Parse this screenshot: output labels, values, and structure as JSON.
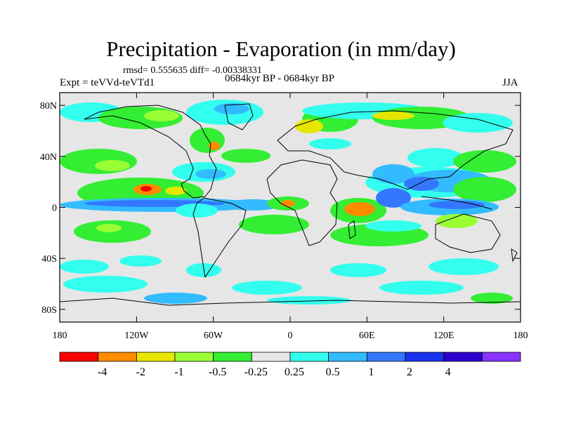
{
  "title": "Precipitation - Evaporation (in mm/day)",
  "stats": "rmsd= 0.555635 diff= -0.00338331",
  "experiment": "Expt = teVVd-teVTd1",
  "period": "0684kyr BP - 0684kyr BP",
  "season": "JJA",
  "map": {
    "projection": "cylindrical equidistant",
    "lon_range": [
      -180,
      180
    ],
    "lat_range": [
      -90,
      90
    ],
    "lat_ticks": [
      {
        "value": 80,
        "label": "80N"
      },
      {
        "value": 40,
        "label": "40N"
      },
      {
        "value": 0,
        "label": "0"
      },
      {
        "value": -40,
        "label": "40S"
      },
      {
        "value": -80,
        "label": "80S"
      }
    ],
    "lon_ticks": [
      {
        "value": -180,
        "label": "180"
      },
      {
        "value": -120,
        "label": "120W"
      },
      {
        "value": -60,
        "label": "60W"
      },
      {
        "value": 0,
        "label": "0"
      },
      {
        "value": 60,
        "label": "60E"
      },
      {
        "value": 120,
        "label": "120E"
      },
      {
        "value": 180,
        "label": "180"
      }
    ]
  },
  "colorbar": {
    "colors": [
      "#ff0000",
      "#ff8c00",
      "#e6e600",
      "#99ff33",
      "#33ee33",
      "#e6e6e6",
      "#33ffee",
      "#33bbff",
      "#3377ff",
      "#1a33ee",
      "#2b00cc",
      "#8833ff"
    ],
    "labels": [
      "-4",
      "-2",
      "-1",
      "-0.5",
      "-0.25",
      "0.25",
      "0.5",
      "1",
      "2",
      "4"
    ]
  }
}
